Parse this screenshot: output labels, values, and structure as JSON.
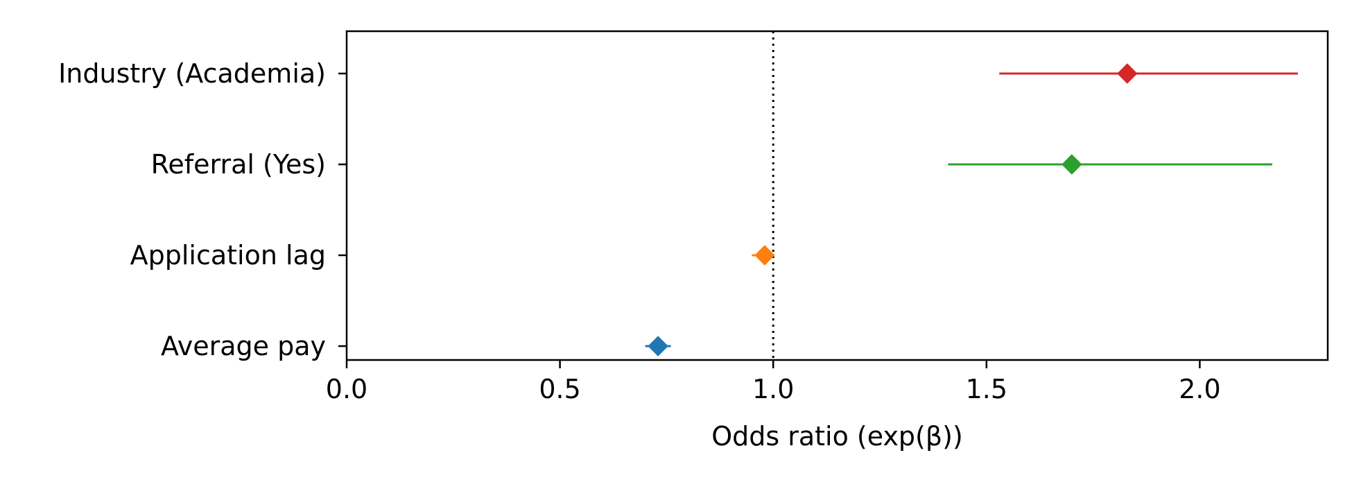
{
  "chart_data": {
    "type": "forest",
    "title": "",
    "xlabel": "Odds ratio (exp(β))",
    "ylabel": "",
    "xlim": [
      0.0,
      2.3
    ],
    "x_ticks": [
      0.0,
      0.5,
      1.0,
      1.5,
      2.0
    ],
    "x_tick_labels": [
      "0.0",
      "0.5",
      "1.0",
      "1.5",
      "2.0"
    ],
    "reference_line": 1.0,
    "grid": false,
    "legend": "none",
    "rows": [
      {
        "label": "Industry (Academia)",
        "estimate": 1.83,
        "ci_low": 1.53,
        "ci_high": 2.23,
        "color": "#d62728"
      },
      {
        "label": "Referral (Yes)",
        "estimate": 1.7,
        "ci_low": 1.41,
        "ci_high": 2.17,
        "color": "#2ca02c"
      },
      {
        "label": "Application lag",
        "estimate": 0.98,
        "ci_low": 0.95,
        "ci_high": 1.0,
        "color": "#ff7f0e"
      },
      {
        "label": "Average pay",
        "estimate": 0.73,
        "ci_low": 0.7,
        "ci_high": 0.76,
        "color": "#1f77b4"
      }
    ]
  }
}
